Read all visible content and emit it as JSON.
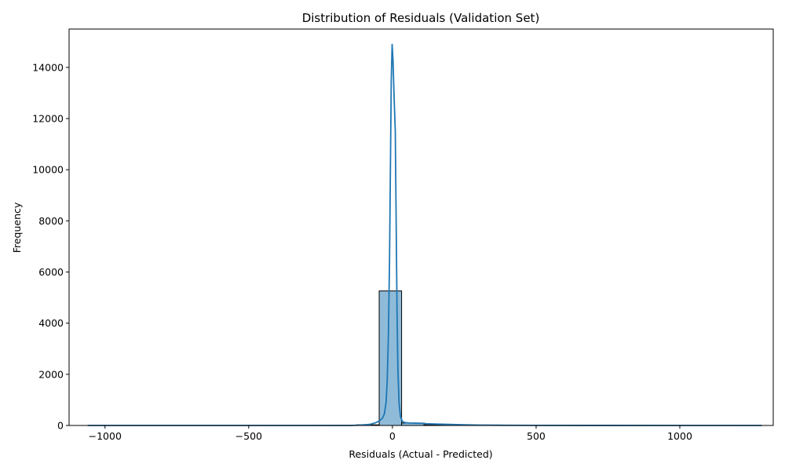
{
  "chart_data": {
    "type": "histogram",
    "title": "Distribution of Residuals (Validation Set)",
    "xlabel": "Residuals (Actual - Predicted)",
    "ylabel": "Frequency",
    "xlim": [
      -1125,
      1325
    ],
    "ylim": [
      0,
      15500
    ],
    "xticks": [
      -1000,
      -500,
      0,
      500,
      1000
    ],
    "xtick_labels": [
      "−1000",
      "−500",
      "0",
      "500",
      "1000"
    ],
    "yticks": [
      0,
      2000,
      4000,
      6000,
      8000,
      10000,
      12000,
      14000
    ],
    "ytick_labels": [
      "0",
      "2000",
      "4000",
      "6000",
      "8000",
      "10000",
      "12000",
      "14000"
    ],
    "bins": [
      {
        "x0": -1060,
        "x1": -982,
        "count": 1
      },
      {
        "x0": -982,
        "x1": -904,
        "count": 0
      },
      {
        "x0": -904,
        "x1": -826,
        "count": 0
      },
      {
        "x0": -826,
        "x1": -748,
        "count": 0
      },
      {
        "x0": -748,
        "x1": -670,
        "count": 0
      },
      {
        "x0": -670,
        "x1": -592,
        "count": 0
      },
      {
        "x0": -592,
        "x1": -514,
        "count": 0
      },
      {
        "x0": -514,
        "x1": -436,
        "count": 0
      },
      {
        "x0": -436,
        "x1": -358,
        "count": 1
      },
      {
        "x0": -358,
        "x1": -280,
        "count": 1
      },
      {
        "x0": -280,
        "x1": -202,
        "count": 2
      },
      {
        "x0": -202,
        "x1": -124,
        "count": 4
      },
      {
        "x0": -124,
        "x1": -46,
        "count": 25
      },
      {
        "x0": -46,
        "x1": 32,
        "count": 5260
      },
      {
        "x0": 32,
        "x1": 110,
        "count": 95
      },
      {
        "x0": 110,
        "x1": 188,
        "count": 25
      },
      {
        "x0": 188,
        "x1": 266,
        "count": 15
      },
      {
        "x0": 266,
        "x1": 344,
        "count": 8
      },
      {
        "x0": 344,
        "x1": 422,
        "count": 4
      },
      {
        "x0": 422,
        "x1": 500,
        "count": 3
      },
      {
        "x0": 500,
        "x1": 578,
        "count": 2
      },
      {
        "x0": 578,
        "x1": 656,
        "count": 2
      },
      {
        "x0": 656,
        "x1": 734,
        "count": 1
      },
      {
        "x0": 734,
        "x1": 812,
        "count": 1
      },
      {
        "x0": 812,
        "x1": 890,
        "count": 1
      },
      {
        "x0": 890,
        "x1": 968,
        "count": 1
      },
      {
        "x0": 968,
        "x1": 1046,
        "count": 1
      },
      {
        "x0": 1046,
        "x1": 1124,
        "count": 1
      },
      {
        "x0": 1124,
        "x1": 1202,
        "count": 0
      },
      {
        "x0": 1202,
        "x1": 1285,
        "count": 1
      }
    ],
    "kde": [
      [
        -1060,
        0
      ],
      [
        -500,
        0
      ],
      [
        -150,
        0
      ],
      [
        -110,
        15
      ],
      [
        -80,
        40
      ],
      [
        -60,
        100
      ],
      [
        -45,
        180
      ],
      [
        -35,
        280
      ],
      [
        -28,
        450
      ],
      [
        -22,
        900
      ],
      [
        -18,
        1800
      ],
      [
        -14,
        3500
      ],
      [
        -10,
        6500
      ],
      [
        -7,
        10000
      ],
      [
        -4,
        13500
      ],
      [
        -1,
        14900
      ],
      [
        2,
        14300
      ],
      [
        6,
        12800
      ],
      [
        10,
        11500
      ],
      [
        13,
        8000
      ],
      [
        16,
        4500
      ],
      [
        19,
        2200
      ],
      [
        23,
        900
      ],
      [
        28,
        350
      ],
      [
        35,
        150
      ],
      [
        45,
        110
      ],
      [
        60,
        95
      ],
      [
        80,
        90
      ],
      [
        100,
        85
      ],
      [
        120,
        70
      ],
      [
        150,
        55
      ],
      [
        200,
        40
      ],
      [
        250,
        25
      ],
      [
        300,
        15
      ],
      [
        400,
        8
      ],
      [
        500,
        5
      ],
      [
        700,
        2
      ],
      [
        1000,
        1
      ],
      [
        1285,
        0
      ]
    ],
    "colors": {
      "bar_fill": "#8fbbd9",
      "bar_edge": "#000000",
      "kde_line": "#1f77b4"
    },
    "grid": false,
    "legend": "none"
  }
}
